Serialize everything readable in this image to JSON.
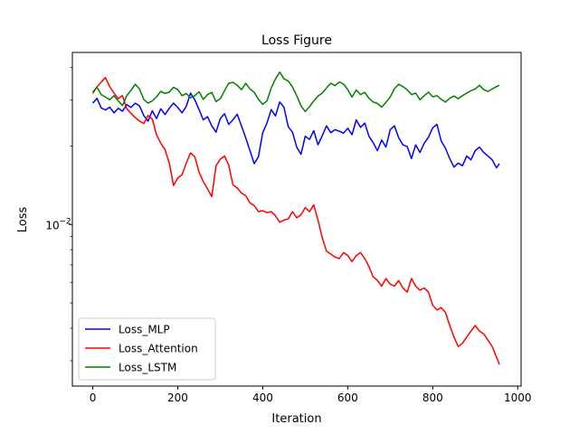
{
  "chart_data": {
    "type": "line",
    "title": "Loss Figure",
    "xlabel": "Iteration",
    "ylabel": "Loss",
    "xlim": [
      -48,
      1008
    ],
    "ylim_log10": [
      -2.62,
      -1.34
    ],
    "yscale": "log",
    "grid": false,
    "legend_position": "lower-left",
    "x_ticks": [
      0,
      200,
      400,
      600,
      800,
      1000
    ],
    "x_tick_labels": [
      "0",
      "200",
      "400",
      "600",
      "800",
      "1000"
    ],
    "y_major_ticks": [
      0.01
    ],
    "y_tick_base": "10",
    "y_tick_exponent": "−2",
    "series": [
      {
        "name": "Loss_MLP",
        "color": "#0000ff",
        "x": [
          0,
          10,
          20,
          30,
          40,
          50,
          60,
          70,
          80,
          90,
          100,
          110,
          120,
          130,
          140,
          150,
          160,
          170,
          180,
          190,
          200,
          210,
          220,
          230,
          240,
          250,
          260,
          270,
          280,
          290,
          300,
          310,
          320,
          330,
          340,
          350,
          360,
          370,
          380,
          390,
          400,
          410,
          420,
          430,
          440,
          450,
          460,
          470,
          480,
          490,
          500,
          510,
          520,
          530,
          540,
          550,
          560,
          570,
          580,
          590,
          600,
          610,
          620,
          630,
          640,
          650,
          660,
          670,
          680,
          690,
          700,
          710,
          720,
          730,
          740,
          750,
          760,
          770,
          780,
          790,
          800,
          810,
          820,
          830,
          840,
          850,
          860,
          870,
          880,
          890,
          900,
          910,
          920,
          930,
          940,
          950,
          957
        ],
        "y": [
          0.0292,
          0.0305,
          0.028,
          0.0275,
          0.0282,
          0.0268,
          0.0279,
          0.0272,
          0.0288,
          0.0281,
          0.0292,
          0.0285,
          0.0262,
          0.0249,
          0.0273,
          0.0255,
          0.0278,
          0.0264,
          0.0279,
          0.0292,
          0.0281,
          0.0268,
          0.0284,
          0.0319,
          0.0301,
          0.0276,
          0.0252,
          0.0259,
          0.0239,
          0.0226,
          0.0255,
          0.0266,
          0.0242,
          0.0252,
          0.0265,
          0.0239,
          0.0215,
          0.0192,
          0.0171,
          0.0182,
          0.0225,
          0.0245,
          0.0276,
          0.0261,
          0.0295,
          0.0282,
          0.0237,
          0.0226,
          0.0198,
          0.0186,
          0.0218,
          0.0212,
          0.0229,
          0.0202,
          0.0219,
          0.0239,
          0.0225,
          0.0231,
          0.0228,
          0.0224,
          0.0234,
          0.0221,
          0.0252,
          0.0236,
          0.0245,
          0.0218,
          0.0206,
          0.0192,
          0.0211,
          0.0198,
          0.0231,
          0.0239,
          0.0215,
          0.0202,
          0.0199,
          0.0179,
          0.0202,
          0.0189,
          0.0205,
          0.0216,
          0.0235,
          0.0242,
          0.0209,
          0.0196,
          0.0179,
          0.0166,
          0.0172,
          0.0168,
          0.0183,
          0.0177,
          0.0192,
          0.0198,
          0.0189,
          0.0183,
          0.0177,
          0.0165,
          0.0171
        ]
      },
      {
        "name": "Loss_Attention",
        "color": "#ff0000",
        "x": [
          0,
          10,
          20,
          30,
          40,
          50,
          60,
          70,
          80,
          90,
          100,
          110,
          120,
          130,
          140,
          150,
          160,
          170,
          180,
          190,
          200,
          210,
          220,
          230,
          240,
          250,
          260,
          270,
          280,
          290,
          300,
          310,
          320,
          330,
          340,
          350,
          360,
          370,
          380,
          390,
          400,
          410,
          420,
          430,
          440,
          450,
          460,
          470,
          480,
          490,
          500,
          510,
          520,
          530,
          540,
          550,
          560,
          570,
          580,
          590,
          600,
          610,
          620,
          630,
          640,
          650,
          660,
          670,
          680,
          690,
          700,
          710,
          720,
          730,
          740,
          750,
          760,
          770,
          780,
          790,
          800,
          810,
          820,
          830,
          840,
          850,
          860,
          870,
          880,
          890,
          900,
          910,
          920,
          930,
          940,
          950,
          957
        ],
        "y": [
          0.0318,
          0.0337,
          0.0352,
          0.0366,
          0.0338,
          0.0319,
          0.0304,
          0.0312,
          0.0278,
          0.0267,
          0.0257,
          0.0249,
          0.0244,
          0.0262,
          0.0254,
          0.0221,
          0.0205,
          0.0194,
          0.0172,
          0.0141,
          0.0151,
          0.0155,
          0.0172,
          0.0188,
          0.0182,
          0.0159,
          0.0146,
          0.0137,
          0.0128,
          0.0168,
          0.0178,
          0.0183,
          0.0169,
          0.0142,
          0.0138,
          0.0132,
          0.0129,
          0.0121,
          0.0118,
          0.0112,
          0.0113,
          0.0111,
          0.0112,
          0.0108,
          0.0102,
          0.0104,
          0.0105,
          0.0112,
          0.0106,
          0.0109,
          0.0116,
          0.0112,
          0.0119,
          0.0104,
          0.0089,
          0.0079,
          0.0077,
          0.0075,
          0.0074,
          0.0078,
          0.0076,
          0.0072,
          0.0076,
          0.0078,
          0.0074,
          0.0069,
          0.0063,
          0.0061,
          0.0058,
          0.0062,
          0.0059,
          0.0058,
          0.0061,
          0.0057,
          0.0055,
          0.0062,
          0.0058,
          0.0056,
          0.0057,
          0.0055,
          0.0049,
          0.0047,
          0.0048,
          0.0046,
          0.0041,
          0.0037,
          0.0034,
          0.0035,
          0.0037,
          0.0039,
          0.0041,
          0.0039,
          0.0038,
          0.0036,
          0.0034,
          0.0031,
          0.0029
        ]
      },
      {
        "name": "Loss_LSTM",
        "color": "#008000",
        "x": [
          0,
          10,
          20,
          30,
          40,
          50,
          60,
          70,
          80,
          90,
          100,
          110,
          120,
          130,
          140,
          150,
          160,
          170,
          180,
          190,
          200,
          210,
          220,
          230,
          240,
          250,
          260,
          270,
          280,
          290,
          300,
          310,
          320,
          330,
          340,
          350,
          360,
          370,
          380,
          390,
          400,
          410,
          420,
          430,
          440,
          450,
          460,
          470,
          480,
          490,
          500,
          510,
          520,
          530,
          540,
          550,
          560,
          570,
          580,
          590,
          600,
          610,
          620,
          630,
          640,
          650,
          660,
          670,
          680,
          690,
          700,
          710,
          720,
          730,
          740,
          750,
          760,
          770,
          780,
          790,
          800,
          810,
          820,
          830,
          840,
          850,
          860,
          870,
          880,
          890,
          900,
          910,
          920,
          930,
          940,
          950,
          957
        ],
        "y": [
          0.0322,
          0.0336,
          0.0315,
          0.0308,
          0.0301,
          0.0312,
          0.0298,
          0.0286,
          0.0312,
          0.0327,
          0.0345,
          0.0331,
          0.0302,
          0.0292,
          0.0298,
          0.0309,
          0.0324,
          0.0318,
          0.0322,
          0.0336,
          0.0329,
          0.0312,
          0.0318,
          0.0306,
          0.0312,
          0.0323,
          0.0302,
          0.0315,
          0.0321,
          0.0296,
          0.0304,
          0.0326,
          0.0348,
          0.0351,
          0.0342,
          0.0329,
          0.0348,
          0.0331,
          0.0321,
          0.0302,
          0.0289,
          0.0298,
          0.0334,
          0.0362,
          0.0384,
          0.0362,
          0.0355,
          0.0337,
          0.0312,
          0.0285,
          0.0271,
          0.0283,
          0.0298,
          0.0311,
          0.0319,
          0.0334,
          0.0348,
          0.0341,
          0.0352,
          0.0346,
          0.0329,
          0.0308,
          0.0328,
          0.0315,
          0.0321,
          0.0305,
          0.0295,
          0.0291,
          0.0282,
          0.0294,
          0.0308,
          0.0332,
          0.0345,
          0.0338,
          0.0329,
          0.0315,
          0.0319,
          0.0301,
          0.0312,
          0.0322,
          0.0309,
          0.0312,
          0.0302,
          0.0295,
          0.0305,
          0.0311,
          0.0304,
          0.0312,
          0.0319,
          0.0326,
          0.0331,
          0.0342,
          0.0329,
          0.0324,
          0.0331,
          0.0338,
          0.0342
        ]
      }
    ]
  }
}
